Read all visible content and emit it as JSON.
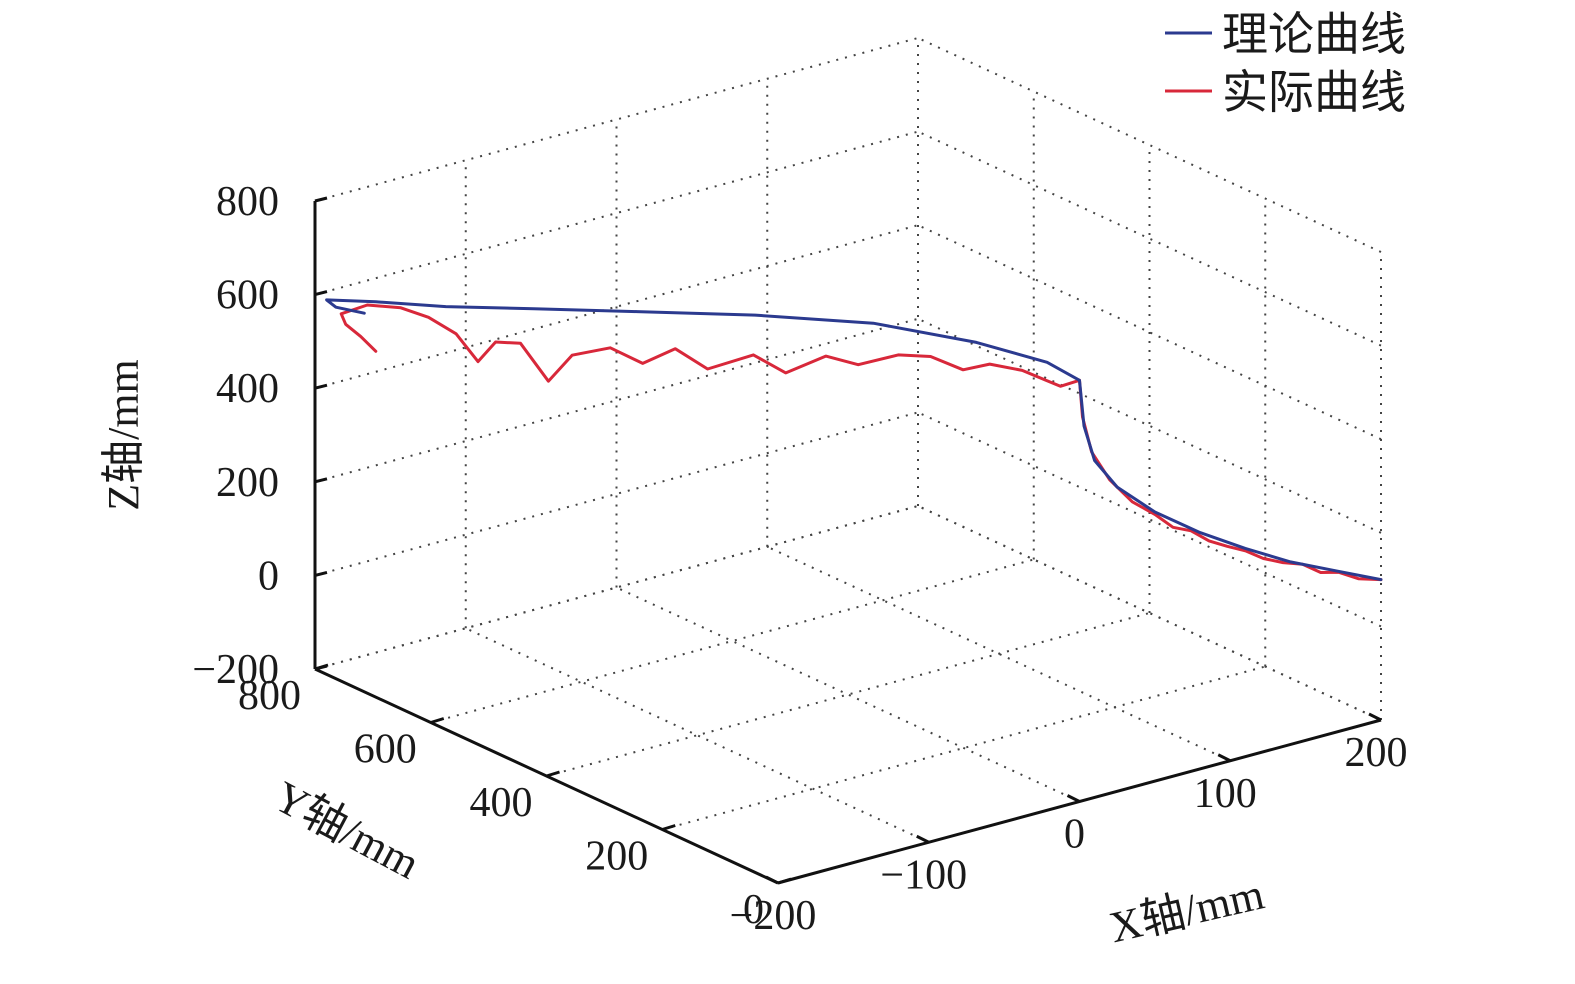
{
  "chart_data": {
    "type": "line",
    "projection": "3d",
    "grid": true,
    "legend_position": "top-right",
    "xlabel": "X轴/mm",
    "ylabel": "Y轴/mm",
    "zlabel": "Z轴/mm",
    "xlim": [
      -200,
      200
    ],
    "ylim": [
      0,
      800
    ],
    "zlim": [
      -200,
      800
    ],
    "xticks": [
      -200,
      -100,
      0,
      100,
      200
    ],
    "yticks": [
      0,
      200,
      400,
      600,
      800
    ],
    "zticks": [
      -200,
      0,
      200,
      400,
      600,
      800
    ],
    "xtick_labels": [
      "−200",
      "−100",
      "0",
      "100",
      "200"
    ],
    "ytick_labels": [
      "0",
      "200",
      "400",
      "600",
      "800"
    ],
    "ztick_labels": [
      "−200",
      "0",
      "200",
      "400",
      "600",
      "800"
    ],
    "series": [
      {
        "name": "理论曲线",
        "color": "#2b3a8f",
        "points": [
          [
            200,
            0,
            100
          ],
          [
            170,
            0,
            145
          ],
          [
            140,
            0,
            190
          ],
          [
            110,
            0,
            245
          ],
          [
            80,
            0,
            305
          ],
          [
            50,
            0,
            375
          ],
          [
            25,
            0,
            450
          ],
          [
            10,
            0,
            520
          ],
          [
            3,
            0,
            600
          ],
          [
            0,
            0,
            700
          ],
          [
            -10,
            30,
            730
          ],
          [
            -30,
            100,
            750
          ],
          [
            -60,
            200,
            760
          ],
          [
            -100,
            300,
            755
          ],
          [
            -140,
            400,
            740
          ],
          [
            -170,
            500,
            715
          ],
          [
            -190,
            600,
            680
          ],
          [
            -198,
            700,
            640
          ],
          [
            -200,
            780,
            600
          ],
          [
            -190,
            790,
            570
          ],
          [
            -175,
            780,
            550
          ]
        ]
      },
      {
        "name": "实际曲线",
        "color": "#d8283a",
        "points": [
          [
            200,
            0,
            100
          ],
          [
            185,
            0,
            115
          ],
          [
            172,
            0,
            140
          ],
          [
            160,
            0,
            150
          ],
          [
            148,
            0,
            178
          ],
          [
            135,
            0,
            193
          ],
          [
            122,
            0,
            213
          ],
          [
            110,
            0,
            240
          ],
          [
            98,
            0,
            260
          ],
          [
            86,
            0,
            282
          ],
          [
            74,
            0,
            314
          ],
          [
            62,
            0,
            332
          ],
          [
            50,
            0,
            370
          ],
          [
            35,
            0,
            410
          ],
          [
            20,
            0,
            470
          ],
          [
            8,
            0,
            540
          ],
          [
            2,
            0,
            620
          ],
          [
            0,
            0,
            700
          ],
          [
            -5,
            20,
            680
          ],
          [
            -15,
            60,
            700
          ],
          [
            -25,
            90,
            705
          ],
          [
            -35,
            110,
            690
          ],
          [
            -45,
            140,
            710
          ],
          [
            -55,
            170,
            705
          ],
          [
            -70,
            200,
            680
          ],
          [
            -80,
            230,
            690
          ],
          [
            -95,
            260,
            650
          ],
          [
            -105,
            290,
            680
          ],
          [
            -120,
            330,
            640
          ],
          [
            -130,
            360,
            675
          ],
          [
            -140,
            390,
            635
          ],
          [
            -150,
            420,
            660
          ],
          [
            -160,
            460,
            630
          ],
          [
            -168,
            480,
            570
          ],
          [
            -175,
            510,
            640
          ],
          [
            -180,
            540,
            630
          ],
          [
            -184,
            560,
            580
          ],
          [
            -187,
            590,
            625
          ],
          [
            -190,
            630,
            640
          ],
          [
            -193,
            670,
            640
          ],
          [
            -196,
            720,
            620
          ],
          [
            -198,
            760,
            580
          ],
          [
            -195,
            760,
            555
          ],
          [
            -185,
            760,
            520
          ],
          [
            -175,
            760,
            480
          ]
        ]
      }
    ]
  }
}
